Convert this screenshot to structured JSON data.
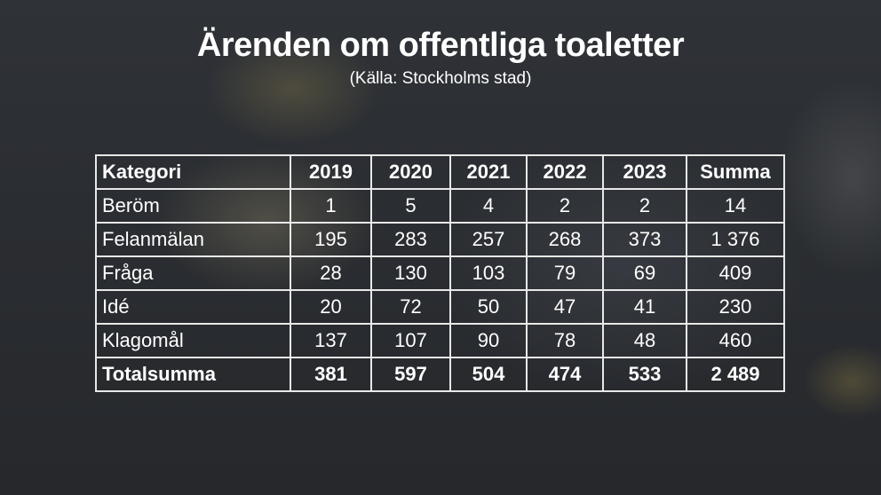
{
  "title": "Ärenden om offentliga toaletter",
  "subtitle": "(Källa: Stockholms stad)",
  "chart_data": {
    "type": "table",
    "title": "Ärenden om offentliga toaletter",
    "subtitle": "(Källa: Stockholms stad)",
    "columns": [
      "Kategori",
      "2019",
      "2020",
      "2021",
      "2022",
      "2023",
      "Summa"
    ],
    "rows": [
      [
        "Beröm",
        "1",
        "5",
        "4",
        "2",
        "2",
        "14"
      ],
      [
        "Felanmälan",
        "195",
        "283",
        "257",
        "268",
        "373",
        "1 376"
      ],
      [
        "Fråga",
        "28",
        "130",
        "103",
        "79",
        "69",
        "409"
      ],
      [
        "Idé",
        "20",
        "72",
        "50",
        "47",
        "41",
        "230"
      ],
      [
        "Klagomål",
        "137",
        "107",
        "90",
        "78",
        "48",
        "460"
      ]
    ],
    "total_row": [
      "Totalsumma",
      "381",
      "597",
      "504",
      "474",
      "533",
      "2 489"
    ]
  }
}
